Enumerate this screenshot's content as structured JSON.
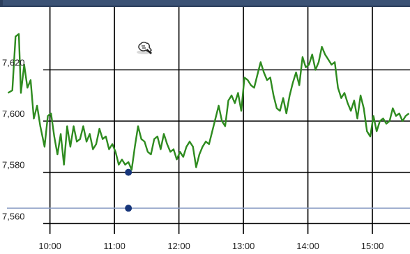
{
  "chart_data": {
    "type": "line",
    "title": "",
    "xlabel": "",
    "ylabel": "",
    "x_ticks": [
      "10:00",
      "11:00",
      "12:00",
      "13:00",
      "14:00",
      "15:00"
    ],
    "y_ticks": [
      "7,560",
      "7,580",
      "7,600",
      "7,620"
    ],
    "ylim": [
      7556,
      7644
    ],
    "xlim": [
      "09:20",
      "15:35"
    ],
    "grid": true,
    "series": [
      {
        "color": "#2e8b1f",
        "x": [
          "09:21",
          "09:25",
          "09:28",
          "09:31",
          "09:33",
          "09:36",
          "09:39",
          "09:42",
          "09:45",
          "09:48",
          "09:51",
          "09:55",
          "09:58",
          "10:01",
          "10:04",
          "10:07",
          "10:10",
          "10:13",
          "10:16",
          "10:19",
          "10:22",
          "10:25",
          "10:28",
          "10:31",
          "10:34",
          "10:37",
          "10:40",
          "10:43",
          "10:46",
          "10:49",
          "10:52",
          "10:55",
          "10:58",
          "11:01",
          "11:04",
          "11:07",
          "11:10",
          "11:13",
          "11:16",
          "11:19",
          "11:22",
          "11:25",
          "11:28",
          "11:31",
          "11:34",
          "11:37",
          "11:40",
          "11:43",
          "11:46",
          "11:49",
          "11:52",
          "11:55",
          "11:58",
          "12:01",
          "12:04",
          "12:07",
          "12:10",
          "12:13",
          "12:16",
          "12:19",
          "12:22",
          "12:25",
          "12:28",
          "12:31",
          "12:34",
          "12:37",
          "12:40",
          "12:43",
          "12:46",
          "12:49",
          "12:52",
          "12:55",
          "12:58",
          "13:01",
          "13:04",
          "13:07",
          "13:10",
          "13:13",
          "13:16",
          "13:19",
          "13:22",
          "13:25",
          "13:28",
          "13:31",
          "13:34",
          "13:37",
          "13:40",
          "13:43",
          "13:46",
          "13:49",
          "13:52",
          "13:55",
          "13:58",
          "14:01",
          "14:04",
          "14:07",
          "14:10",
          "14:13",
          "14:16",
          "14:19",
          "14:22",
          "14:25",
          "14:28",
          "14:31",
          "14:34",
          "14:37",
          "14:40",
          "14:43",
          "14:46",
          "14:49",
          "14:52",
          "14:55",
          "14:58",
          "15:01",
          "15:04",
          "15:07",
          "15:10",
          "15:13",
          "15:16",
          "15:19",
          "15:22",
          "15:25",
          "15:28",
          "15:31",
          "15:34"
        ],
        "values": [
          7611,
          7612,
          7633,
          7634,
          7611,
          7622,
          7613,
          7616,
          7601,
          7606,
          7598,
          7590,
          7602,
          7603,
          7594,
          7587,
          7595,
          7583,
          7598,
          7590,
          7598,
          7592,
          7593,
          7598,
          7592,
          7595,
          7589,
          7591,
          7597,
          7593,
          7594,
          7589,
          7591,
          7588,
          7583,
          7585,
          7583,
          7584,
          7581,
          7590,
          7598,
          7593,
          7592,
          7588,
          7587,
          7593,
          7594,
          7589,
          7595,
          7591,
          7588,
          7589,
          7585,
          7588,
          7586,
          7590,
          7592,
          7590,
          7582,
          7587,
          7590,
          7592,
          7591,
          7596,
          7601,
          7606,
          7600,
          7598,
          7608,
          7610,
          7607,
          7611,
          7604,
          7617,
          7616,
          7614,
          7613,
          7618,
          7623,
          7619,
          7616,
          7617,
          7610,
          7605,
          7604,
          7609,
          7603,
          7610,
          7615,
          7619,
          7614,
          7625,
          7621,
          7622,
          7626,
          7620,
          7623,
          7629,
          7626,
          7624,
          7622,
          7623,
          7613,
          7609,
          7611,
          7607,
          7604,
          7608,
          7601,
          7610,
          7605,
          7596,
          7594,
          7602,
          7596,
          7600,
          7601,
          7599,
          7600,
          7605,
          7602,
          7603,
          7600,
          7602,
          7603
        ]
      }
    ],
    "reference_line": {
      "value": 7566,
      "color": "#8a9dc4"
    },
    "markers": [
      {
        "x": "11:13",
        "y": 7580,
        "color": "#16357a"
      },
      {
        "x": "11:13",
        "y": 7566,
        "color": "#16357a"
      }
    ]
  },
  "colors": {
    "header_bar": "#2b3e5c",
    "header_inner": "#3b5275",
    "grid": "#000000",
    "background": "#ffffff"
  },
  "icons": {
    "annotation": "hand-pointer-icon"
  }
}
